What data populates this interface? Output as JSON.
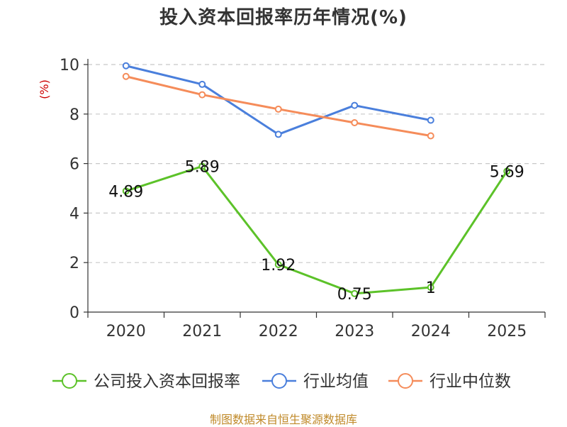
{
  "chart_data": {
    "type": "line",
    "title": "投入资本回报率历年情况(%)",
    "ylabel": "(%)",
    "categories": [
      "2020",
      "2021",
      "2022",
      "2023",
      "2024",
      "2025"
    ],
    "ylim": [
      0,
      10
    ],
    "yticks": [
      0,
      2,
      4,
      6,
      8,
      10
    ],
    "grid": true,
    "legend_position": "bottom",
    "series": [
      {
        "name": "公司投入资本回报率",
        "color": "#5cc229",
        "values": [
          4.89,
          5.89,
          1.92,
          0.75,
          1,
          5.69
        ],
        "labels": [
          "4.89",
          "5.89",
          "1.92",
          "0.75",
          "1",
          "5.69"
        ]
      },
      {
        "name": "行业均值",
        "color": "#4a7fdc",
        "values": [
          9.95,
          9.2,
          7.18,
          8.35,
          7.75,
          null
        ]
      },
      {
        "name": "行业中位数",
        "color": "#f58c5a",
        "values": [
          9.52,
          8.78,
          8.2,
          7.65,
          7.12,
          null
        ]
      }
    ]
  },
  "footer": {
    "source": "制图数据来自恒生聚源数据库"
  }
}
